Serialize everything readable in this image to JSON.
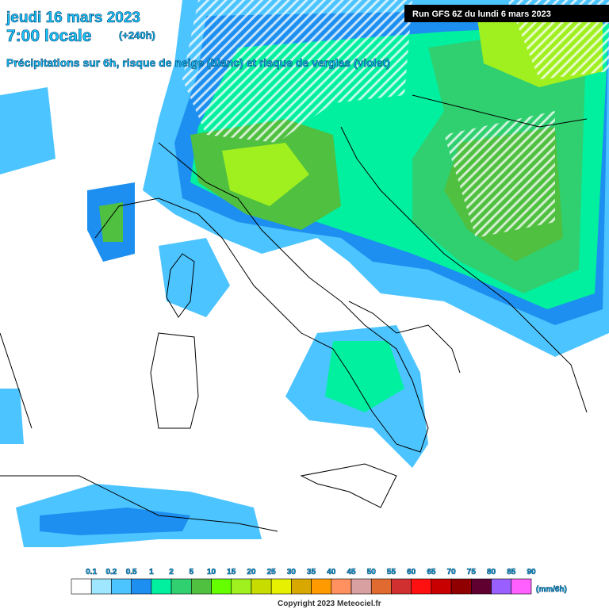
{
  "header": {
    "date": "jeudi 16 mars 2023",
    "time": "7:00 locale",
    "lead": "(+240h)",
    "subtitle": "Précipitations sur 6h, risque de neige (blanc) et risque de verglas (violet)",
    "run": "Run GFS 6Z du lundi 6 mars 2023"
  },
  "legend": {
    "labels": [
      "0.1",
      "0.2",
      "0.5",
      "1",
      "2",
      "5",
      "10",
      "15",
      "20",
      "25",
      "30",
      "35",
      "40",
      "45",
      "50",
      "55",
      "60",
      "65",
      "70",
      "75",
      "80",
      "85",
      "90"
    ],
    "colors": [
      "#ffffff",
      "#9fe6ff",
      "#4cc4ff",
      "#1d8ff0",
      "#00f0a0",
      "#30d070",
      "#50c040",
      "#66ff00",
      "#a0f020",
      "#c8dc00",
      "#e6f000",
      "#d8a800",
      "#ff9a00",
      "#ff9060",
      "#d8a0a0",
      "#e06a30",
      "#d03030",
      "#ff1010",
      "#c80000",
      "#900000",
      "#600030",
      "#9a60ff",
      "#ff60ff"
    ],
    "unit": "(mm/6h)"
  },
  "footer": {
    "copyright": "Copyright 2023 Meteociel.fr"
  }
}
